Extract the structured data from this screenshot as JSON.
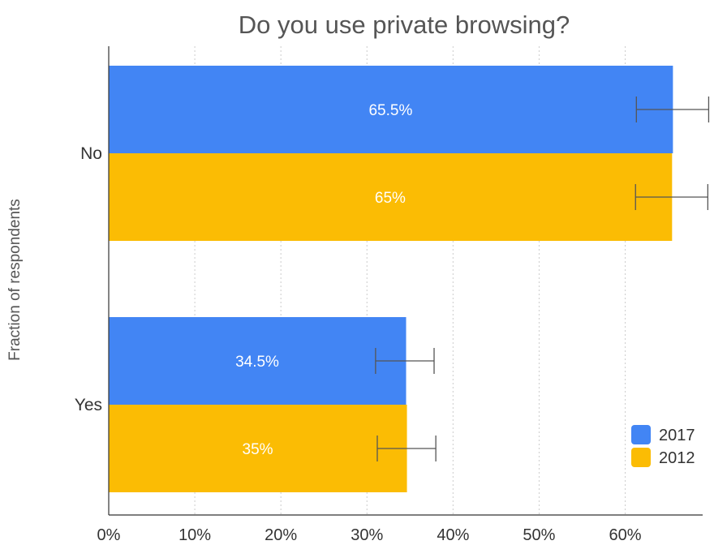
{
  "chart_data": {
    "type": "bar",
    "orientation": "horizontal",
    "title": "Do you use private browsing?",
    "xlabel": "",
    "ylabel": "Fraction of respondents",
    "categories": [
      "No",
      "Yes"
    ],
    "series": [
      {
        "name": "2017",
        "color": "#4285F4",
        "values": [
          65.5,
          34.5
        ],
        "labels": [
          "65.5%",
          "34.5%"
        ],
        "error_low": [
          61.3,
          31.0
        ],
        "error_high": [
          69.7,
          37.8
        ]
      },
      {
        "name": "2012",
        "color": "#FBBC04",
        "values": [
          65.4,
          34.6
        ],
        "labels": [
          "65%",
          "35%"
        ],
        "error_low": [
          61.2,
          31.2
        ],
        "error_high": [
          69.6,
          38.0
        ]
      }
    ],
    "xlim": [
      0,
      69
    ],
    "xticks": [
      0,
      10,
      20,
      30,
      40,
      50,
      60
    ],
    "xtick_labels": [
      "0%",
      "10%",
      "20%",
      "30%",
      "40%",
      "50%",
      "60%"
    ],
    "grid": true,
    "legend_position": "bottom-right"
  }
}
